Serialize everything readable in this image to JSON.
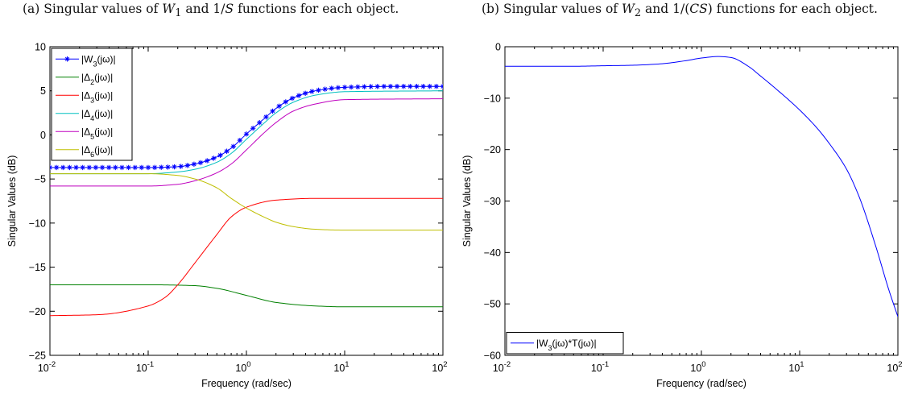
{
  "captions": [
    {
      "label": "(a)",
      "pre": "Singular values of ",
      "sym1": "W",
      "sub1": "1",
      "mid": " and 1/",
      "sym2": "S",
      "post": " functions for each object."
    },
    {
      "label": "(b)",
      "pre": "Singular values of ",
      "sym1": "W",
      "sub1": "2",
      "mid": " and 1/(",
      "sym2": "CS",
      "post": ") functions for each object."
    }
  ],
  "chart_data": [
    {
      "type": "line",
      "xscale": "log",
      "xlim": [
        0.01,
        100
      ],
      "ylim": [
        -25,
        10
      ],
      "xlabel": "Frequency (rad/sec)",
      "ylabel": "Singular Values (dB)",
      "x_ticks": [
        0.01,
        0.1,
        1,
        10,
        100
      ],
      "y_ticks": [
        -25,
        -20,
        -15,
        -10,
        -5,
        0,
        5,
        10
      ],
      "legend_position": "top-left",
      "series": [
        {
          "name": "|W3(jω)|",
          "color": "#0000ff",
          "marker": "star",
          "x": [
            0.01,
            0.03,
            0.1,
            0.2,
            0.3,
            0.5,
            0.7,
            1,
            1.5,
            2,
            3,
            5,
            10,
            30,
            100
          ],
          "values": [
            -3.7,
            -3.7,
            -3.7,
            -3.6,
            -3.3,
            -2.5,
            -1.5,
            0.1,
            1.8,
            3.0,
            4.2,
            5.0,
            5.4,
            5.5,
            5.5
          ]
        },
        {
          "name": "|Δ2(jω)|",
          "color": "#008000",
          "x": [
            0.01,
            0.1,
            0.3,
            0.5,
            1,
            2,
            5,
            10,
            100
          ],
          "values": [
            -17.0,
            -17.0,
            -17.1,
            -17.4,
            -18.2,
            -19.0,
            -19.4,
            -19.5,
            -19.5
          ]
        },
        {
          "name": "|Δ3(jω)|",
          "color": "#ff0000",
          "x": [
            0.01,
            0.03,
            0.1,
            0.15,
            0.2,
            0.3,
            0.5,
            0.7,
            1,
            2,
            5,
            10,
            100
          ],
          "values": [
            -20.5,
            -20.4,
            -19.4,
            -18.4,
            -17.0,
            -14.5,
            -11.3,
            -9.3,
            -8.2,
            -7.4,
            -7.2,
            -7.2,
            -7.2
          ]
        },
        {
          "name": "|Δ4(jω)|",
          "color": "#00bfbf",
          "x": [
            0.01,
            0.1,
            0.2,
            0.3,
            0.5,
            0.7,
            1,
            1.5,
            2,
            3,
            5,
            10,
            100
          ],
          "values": [
            -4.4,
            -4.4,
            -4.2,
            -3.9,
            -3.1,
            -2.1,
            -0.5,
            1.3,
            2.5,
            3.7,
            4.5,
            4.9,
            5.0
          ]
        },
        {
          "name": "|Δ5(jω)|",
          "color": "#bf00bf",
          "x": [
            0.01,
            0.1,
            0.2,
            0.3,
            0.5,
            0.7,
            1,
            1.5,
            2,
            3,
            5,
            10,
            100
          ],
          "values": [
            -5.8,
            -5.8,
            -5.6,
            -5.2,
            -4.3,
            -3.3,
            -1.7,
            0.2,
            1.4,
            2.7,
            3.5,
            4.0,
            4.1
          ]
        },
        {
          "name": "|Δ6(jω)|",
          "color": "#bfbf00",
          "x": [
            0.01,
            0.1,
            0.2,
            0.3,
            0.5,
            0.7,
            1,
            1.5,
            2,
            3,
            5,
            10,
            100
          ],
          "values": [
            -4.4,
            -4.4,
            -4.6,
            -5.0,
            -6.0,
            -7.2,
            -8.3,
            -9.3,
            -9.9,
            -10.4,
            -10.7,
            -10.8,
            -10.8
          ]
        }
      ]
    },
    {
      "type": "line",
      "xscale": "log",
      "xlim": [
        0.01,
        100
      ],
      "ylim": [
        -60,
        0
      ],
      "xlabel": "Frequency (rad/sec)",
      "ylabel": "Singular Values (dB)",
      "x_ticks": [
        0.01,
        0.1,
        1,
        10,
        100
      ],
      "y_ticks": [
        -60,
        -50,
        -40,
        -30,
        -20,
        -10,
        0
      ],
      "legend_position": "bottom-left",
      "series": [
        {
          "name": "|W3(jω)*T(jω)|",
          "color": "#0000ff",
          "x": [
            0.01,
            0.05,
            0.1,
            0.2,
            0.4,
            0.7,
            1,
            1.5,
            2,
            3,
            4,
            6,
            10,
            15,
            20,
            30,
            40,
            60,
            80,
            100
          ],
          "values": [
            -3.8,
            -3.8,
            -3.7,
            -3.6,
            -3.3,
            -2.7,
            -2.2,
            -1.9,
            -2.1,
            -3.8,
            -5.7,
            -8.5,
            -12.3,
            -15.8,
            -18.8,
            -23.8,
            -29.0,
            -39.0,
            -47.0,
            -52.5
          ]
        }
      ]
    }
  ]
}
